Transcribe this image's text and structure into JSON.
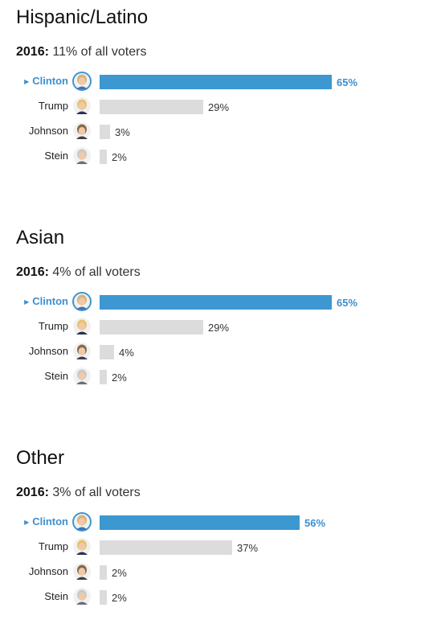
{
  "chart_data": [
    {
      "type": "bar",
      "title": "Hispanic/Latino",
      "subtitle_year": "2016:",
      "subtitle_text": "11% of all voters",
      "categories": [
        "Clinton",
        "Trump",
        "Johnson",
        "Stein"
      ],
      "values": [
        65,
        29,
        3,
        2
      ],
      "value_labels": [
        "65%",
        "29%",
        "3%",
        "2%"
      ],
      "winner": "Clinton"
    },
    {
      "type": "bar",
      "title": "Asian",
      "subtitle_year": "2016:",
      "subtitle_text": "4% of all voters",
      "categories": [
        "Clinton",
        "Trump",
        "Johnson",
        "Stein"
      ],
      "values": [
        65,
        29,
        4,
        2
      ],
      "value_labels": [
        "65%",
        "29%",
        "4%",
        "2%"
      ],
      "winner": "Clinton"
    },
    {
      "type": "bar",
      "title": "Other",
      "subtitle_year": "2016:",
      "subtitle_text": "3% of all voters",
      "categories": [
        "Clinton",
        "Trump",
        "Johnson",
        "Stein"
      ],
      "values": [
        56,
        37,
        2,
        2
      ],
      "value_labels": [
        "56%",
        "37%",
        "2%",
        "2%"
      ],
      "winner": "Clinton"
    }
  ],
  "colors": {
    "winner_bar": "#3d97d0",
    "other_bar": "#dcdcdc",
    "winner_text": "#3d8fce"
  },
  "icons": {
    "winner_marker": "triangle-right-icon",
    "Clinton": "clinton-portrait-icon",
    "Trump": "trump-portrait-icon",
    "Johnson": "johnson-portrait-icon",
    "Stein": "stein-portrait-icon"
  }
}
